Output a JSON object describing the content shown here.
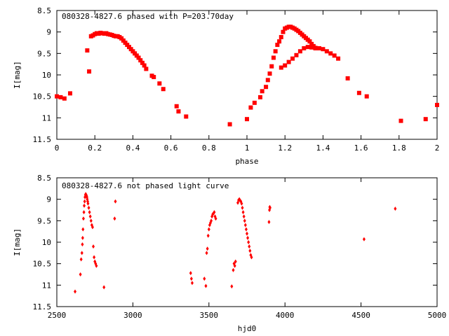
{
  "chart_data": [
    {
      "type": "scatter",
      "title": "080328-4827.6 phased with P=203.70day",
      "xlabel": "phase",
      "ylabel": "I[mag]",
      "xlim": [
        0,
        2
      ],
      "ylim": [
        8.5,
        11.5
      ],
      "y_inverted": true,
      "xticks": [
        "0",
        "0.2",
        "0.4",
        "0.6",
        "0.8",
        "1",
        "1.2",
        "1.4",
        "1.6",
        "1.8",
        "2"
      ],
      "yticks": [
        "8.5",
        "9",
        "9.5",
        "10",
        "10.5",
        "11",
        "11.5"
      ],
      "marker": "square",
      "color": "#ff0000",
      "grid": false,
      "x": [
        0.0,
        0.02,
        0.04,
        0.07,
        0.16,
        0.17,
        0.18,
        0.19,
        0.2,
        0.21,
        0.22,
        0.23,
        0.24,
        0.25,
        0.26,
        0.27,
        0.28,
        0.29,
        0.3,
        0.31,
        0.32,
        0.33,
        0.34,
        0.35,
        0.36,
        0.37,
        0.38,
        0.39,
        0.4,
        0.41,
        0.42,
        0.43,
        0.44,
        0.45,
        0.46,
        0.47,
        0.5,
        0.51,
        0.54,
        0.56,
        0.63,
        0.64,
        0.68,
        0.91,
        1.0,
        1.02,
        1.04,
        1.07,
        1.08,
        1.1,
        1.11,
        1.12,
        1.13,
        1.14,
        1.15,
        1.16,
        1.17,
        1.18,
        1.19,
        1.2,
        1.21,
        1.22,
        1.23,
        1.24,
        1.25,
        1.26,
        1.27,
        1.28,
        1.29,
        1.3,
        1.31,
        1.32,
        1.33,
        1.34,
        1.35,
        1.36,
        1.18,
        1.2,
        1.22,
        1.24,
        1.26,
        1.28,
        1.3,
        1.32,
        1.34,
        1.36,
        1.38,
        1.4,
        1.42,
        1.44,
        1.46,
        1.48,
        1.53,
        1.59,
        1.63,
        1.81,
        1.94,
        2.0
      ],
      "y": [
        10.5,
        10.52,
        10.55,
        10.43,
        9.43,
        9.92,
        9.1,
        9.08,
        9.05,
        9.03,
        9.04,
        9.02,
        9.03,
        9.04,
        9.03,
        9.05,
        9.06,
        9.07,
        9.09,
        9.1,
        9.1,
        9.12,
        9.15,
        9.2,
        9.25,
        9.3,
        9.35,
        9.4,
        9.45,
        9.5,
        9.55,
        9.6,
        9.66,
        9.72,
        9.78,
        9.86,
        10.02,
        10.05,
        10.2,
        10.33,
        10.73,
        10.85,
        10.97,
        11.15,
        11.03,
        10.76,
        10.65,
        10.52,
        10.38,
        10.28,
        10.12,
        9.97,
        9.8,
        9.6,
        9.45,
        9.3,
        9.22,
        9.12,
        9.0,
        8.92,
        8.9,
        8.88,
        8.88,
        8.9,
        8.92,
        8.95,
        8.98,
        9.02,
        9.06,
        9.1,
        9.14,
        9.18,
        9.22,
        9.28,
        9.33,
        9.38,
        9.83,
        9.78,
        9.7,
        9.62,
        9.54,
        9.45,
        9.38,
        9.35,
        9.36,
        9.37,
        9.38,
        9.4,
        9.45,
        9.5,
        9.55,
        9.62,
        10.08,
        10.42,
        10.5,
        11.07,
        11.03,
        10.7
      ]
    },
    {
      "type": "scatter",
      "title": "080328-4827.6 not phased light curve",
      "xlabel": "hjd0",
      "ylabel": "I[mag]",
      "xlim": [
        2500,
        5000
      ],
      "ylim": [
        8.5,
        11.5
      ],
      "y_inverted": true,
      "xticks": [
        "2500",
        "3000",
        "3500",
        "4000",
        "4500",
        "5000"
      ],
      "yticks": [
        "8.5",
        "9",
        "9.5",
        "10",
        "10.5",
        "11",
        "11.5"
      ],
      "marker": "diamond",
      "color": "#ff0000",
      "grid": false,
      "x": [
        2620,
        2655,
        2660,
        2665,
        2668,
        2670,
        2672,
        2675,
        2678,
        2680,
        2683,
        2685,
        2688,
        2690,
        2693,
        2695,
        2698,
        2700,
        2703,
        2705,
        2710,
        2715,
        2720,
        2725,
        2730,
        2735,
        2740,
        2745,
        2750,
        2755,
        2760,
        2810,
        2880,
        2885,
        3380,
        3385,
        3390,
        3470,
        3480,
        3485,
        3490,
        3495,
        3500,
        3505,
        3510,
        3515,
        3520,
        3525,
        3530,
        3535,
        3540,
        3545,
        3650,
        3660,
        3665,
        3670,
        3675,
        3690,
        3695,
        3700,
        3705,
        3710,
        3715,
        3720,
        3725,
        3730,
        3735,
        3740,
        3745,
        3750,
        3755,
        3760,
        3765,
        3770,
        3775,
        3780,
        3895,
        3898,
        3900,
        3902,
        4520,
        4725
      ],
      "y": [
        11.15,
        10.75,
        10.4,
        10.25,
        10.05,
        9.9,
        9.7,
        9.45,
        9.3,
        9.15,
        9.05,
        8.95,
        8.9,
        8.88,
        8.9,
        8.92,
        8.95,
        9.0,
        9.05,
        9.1,
        9.2,
        9.3,
        9.4,
        9.5,
        9.6,
        9.65,
        10.1,
        10.35,
        10.45,
        10.5,
        10.55,
        11.05,
        9.45,
        9.05,
        10.72,
        10.85,
        10.95,
        10.85,
        11.02,
        10.25,
        10.15,
        9.85,
        9.7,
        9.6,
        9.55,
        9.5,
        9.4,
        9.35,
        9.33,
        9.3,
        9.4,
        9.45,
        11.03,
        10.65,
        10.5,
        10.55,
        10.45,
        9.08,
        9.02,
        9.0,
        9.03,
        9.05,
        9.1,
        9.2,
        9.3,
        9.4,
        9.5,
        9.6,
        9.7,
        9.8,
        9.9,
        10.0,
        10.1,
        10.2,
        10.3,
        10.35,
        9.53,
        9.25,
        9.18,
        9.2,
        9.93,
        9.22
      ]
    }
  ]
}
